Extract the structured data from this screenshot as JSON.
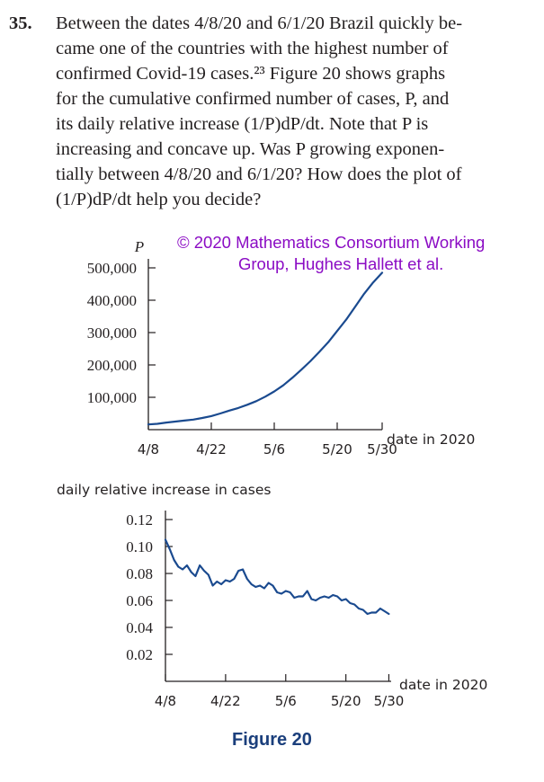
{
  "problem": {
    "number": "35.",
    "lines": [
      "Between the dates 4/8/20 and 6/1/20 Brazil quickly be-",
      "came one of the countries with the highest number of",
      "confirmed Covid-19 cases.²³ Figure 20 shows graphs",
      "for the cumulative confirmed number of cases, P, and",
      "its daily relative increase (1/P)dP/dt. Note that P is",
      "increasing and concave up. Was P growing exponen-",
      "tially between 4/8/20 and 6/1/20? How does the plot of",
      "(1/P)dP/dt help you decide?"
    ]
  },
  "copyright": {
    "line1": "© 2020 Mathematics Consortium Working",
    "line2": "Group, Hughes Hallett et al."
  },
  "figure_caption": "Figure 20",
  "colors": {
    "curve": "#1a4a8f",
    "axis": "#231f20",
    "copyright": "#8b0cc4",
    "caption": "#1b3f7c"
  },
  "chart_data": [
    {
      "type": "line",
      "title": "",
      "ylabel": "P",
      "xlabel": "date in 2020",
      "ylim": [
        0,
        500000
      ],
      "yticks": [
        100000,
        200000,
        300000,
        400000,
        500000
      ],
      "ytick_labels": [
        "100,000",
        "200,000",
        "300,000",
        "400,000",
        "500,000"
      ],
      "xticks": [
        "4/8",
        "4/22",
        "5/6",
        "5/20",
        "5/30"
      ],
      "xtick_days": [
        0,
        14,
        28,
        42,
        52
      ],
      "xlim": [
        0,
        54
      ],
      "series": [
        {
          "x": [
            0,
            2,
            4,
            6,
            8,
            10,
            12,
            14,
            16,
            18,
            20,
            22,
            24,
            26,
            28,
            30,
            32,
            34,
            36,
            38,
            40,
            42,
            44,
            46,
            48,
            50,
            52
          ],
          "values": [
            16000,
            18000,
            22000,
            25000,
            28000,
            31000,
            36000,
            42000,
            50000,
            59000,
            67000,
            77000,
            88000,
            102000,
            118000,
            137000,
            160000,
            185000,
            211000,
            240000,
            270000,
            305000,
            340000,
            380000,
            420000,
            455000,
            485000
          ]
        }
      ]
    },
    {
      "type": "line",
      "title": "daily relative increase in cases",
      "xlabel": "date in 2020",
      "ylabel": "",
      "ylim": [
        0,
        0.13
      ],
      "yticks": [
        0.02,
        0.04,
        0.06,
        0.08,
        0.1,
        0.12
      ],
      "ytick_labels": [
        "0.02",
        "0.04",
        "0.06",
        "0.08",
        "0.10",
        "0.12"
      ],
      "xticks": [
        "4/8",
        "4/22",
        "5/6",
        "5/20",
        "5/30"
      ],
      "xtick_days": [
        0,
        14,
        28,
        42,
        52
      ],
      "xlim": [
        0,
        54
      ],
      "series": [
        {
          "x": [
            0,
            1,
            2,
            3,
            4,
            5,
            6,
            7,
            8,
            9,
            10,
            11,
            12,
            13,
            14,
            15,
            16,
            17,
            18,
            19,
            20,
            21,
            22,
            23,
            24,
            25,
            26,
            27,
            28,
            29,
            30,
            31,
            32,
            33,
            34,
            35,
            36,
            37,
            38,
            39,
            40,
            41,
            42,
            43,
            44,
            45,
            46,
            47,
            48,
            49,
            50,
            51,
            52
          ],
          "values": [
            0.105,
            0.098,
            0.09,
            0.085,
            0.083,
            0.086,
            0.081,
            0.078,
            0.086,
            0.082,
            0.079,
            0.071,
            0.074,
            0.072,
            0.075,
            0.074,
            0.076,
            0.082,
            0.083,
            0.076,
            0.072,
            0.07,
            0.071,
            0.069,
            0.073,
            0.071,
            0.066,
            0.065,
            0.067,
            0.066,
            0.062,
            0.063,
            0.063,
            0.067,
            0.061,
            0.06,
            0.062,
            0.063,
            0.062,
            0.064,
            0.063,
            0.06,
            0.061,
            0.058,
            0.057,
            0.054,
            0.053,
            0.05,
            0.051,
            0.051,
            0.054,
            0.052,
            0.05
          ]
        }
      ]
    }
  ]
}
